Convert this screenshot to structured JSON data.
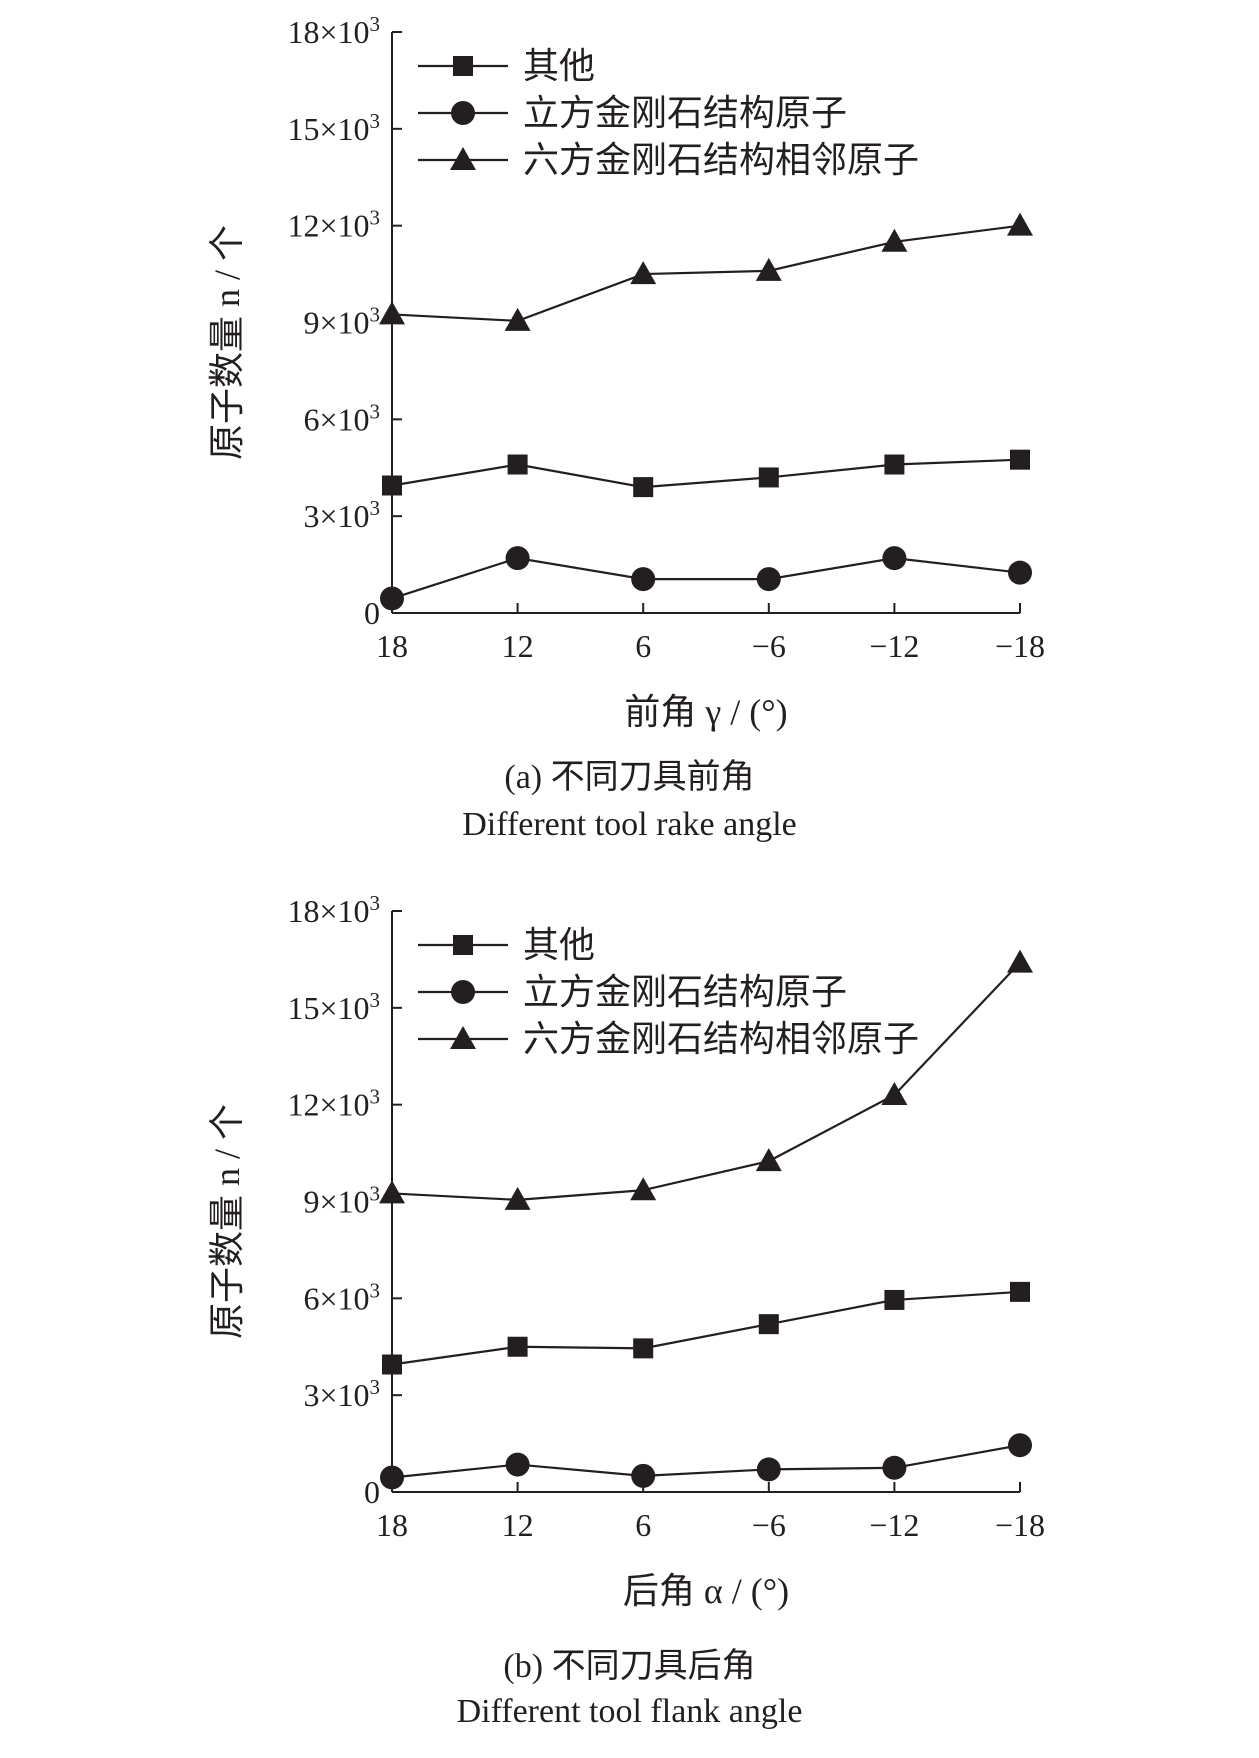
{
  "legend_labels": [
    "其他",
    "立方金刚石结构原子",
    "六方金刚石结构相邻原子"
  ],
  "chart_data": [
    {
      "type": "line",
      "caption": "(a) 不同刀具前角",
      "caption_en": "Different tool rake angle",
      "xlabel": "前角 γ / (°)",
      "ylabel": "原子数量 n / 个",
      "categories": [
        "18",
        "12",
        "6",
        "−6",
        "−12",
        "−18"
      ],
      "ylim": [
        0,
        18000
      ],
      "yticks": [
        {
          "value": 0,
          "label": "0"
        },
        {
          "value": 3000,
          "label": "3×10³"
        },
        {
          "value": 6000,
          "label": "6×10³"
        },
        {
          "value": 9000,
          "label": "9×10³"
        },
        {
          "value": 12000,
          "label": "12×10³"
        },
        {
          "value": 15000,
          "label": "15×10³"
        },
        {
          "value": 18000,
          "label": "18×10³"
        }
      ],
      "grid": false,
      "legend_position": "top-left",
      "series": [
        {
          "name": "其他",
          "marker": "square",
          "values": [
            3950,
            4600,
            3900,
            4200,
            4600,
            4750
          ]
        },
        {
          "name": "立方金刚石结构原子",
          "marker": "circle",
          "values": [
            450,
            1700,
            1050,
            1050,
            1700,
            1250
          ]
        },
        {
          "name": "六方金刚石结构相邻原子",
          "marker": "triangle",
          "values": [
            9250,
            9050,
            10500,
            10600,
            11500,
            12000
          ]
        }
      ]
    },
    {
      "type": "line",
      "caption": "(b) 不同刀具后角",
      "caption_en": "Different tool flank angle",
      "xlabel": "后角 α / (°)",
      "ylabel": "原子数量 n / 个",
      "categories": [
        "18",
        "12",
        "6",
        "−6",
        "−12",
        "−18"
      ],
      "ylim": [
        0,
        18000
      ],
      "yticks": [
        {
          "value": 0,
          "label": "0"
        },
        {
          "value": 3000,
          "label": "3×10³"
        },
        {
          "value": 6000,
          "label": "6×10³"
        },
        {
          "value": 9000,
          "label": "9×10³"
        },
        {
          "value": 12000,
          "label": "12×10³"
        },
        {
          "value": 15000,
          "label": "15×10³"
        },
        {
          "value": 18000,
          "label": "18×10³"
        }
      ],
      "grid": false,
      "legend_position": "top-left",
      "series": [
        {
          "name": "其他",
          "marker": "square",
          "values": [
            3950,
            4500,
            4450,
            5200,
            5950,
            6200
          ]
        },
        {
          "name": "立方金刚石结构原子",
          "marker": "circle",
          "values": [
            450,
            850,
            500,
            700,
            750,
            1450
          ]
        },
        {
          "name": "六方金刚石结构相邻原子",
          "marker": "triangle",
          "values": [
            9250,
            9050,
            9350,
            10250,
            12300,
            16400
          ]
        }
      ]
    }
  ]
}
